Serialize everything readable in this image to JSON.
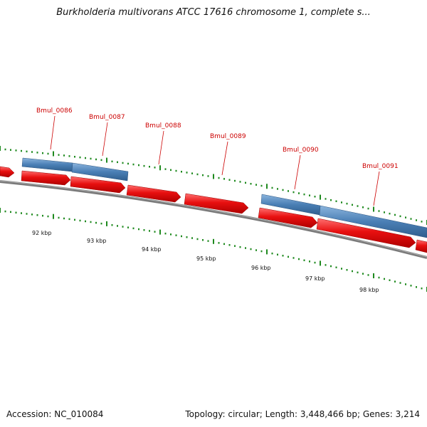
{
  "title": "Burkholderia multivorans ATCC 17616 chromosome 1, complete s...",
  "footer": {
    "accession": "Accession: NC_010084",
    "summary": "Topology: circular; Length: 3,448,466 bp; Genes: 3,214"
  },
  "colors": {
    "cds": "#e81010",
    "gene": "#4a7fb5",
    "backbone": "#7a7a7a",
    "ticks": "#1f8a1f",
    "label": "#cc0000"
  },
  "gene_labels": [
    "Bmul_0086",
    "Bmul_0087",
    "Bmul_0088",
    "Bmul_0089",
    "Bmul_0090",
    "Bmul_0091"
  ],
  "kbp_labels": [
    "92 kbp",
    "93 kbp",
    "94 kbp",
    "95 kbp",
    "96 kbp",
    "97 kbp",
    "98 kbp"
  ]
}
